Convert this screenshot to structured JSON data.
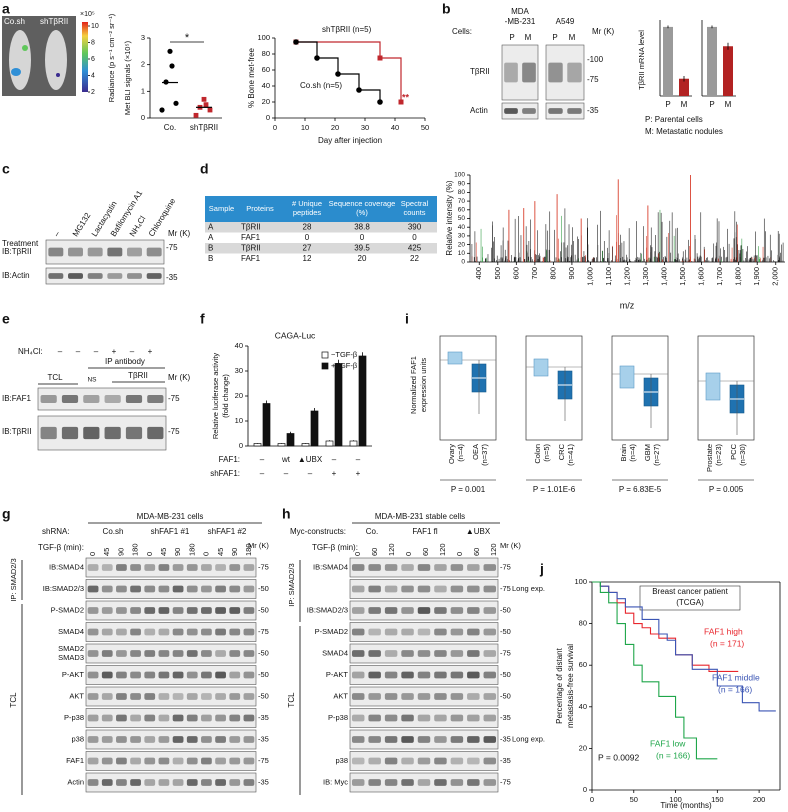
{
  "labels": [
    "a",
    "b",
    "c",
    "d",
    "e",
    "f",
    "g",
    "h",
    "i",
    "j"
  ],
  "a": {
    "mice": [
      "Co.sh",
      "shTβRII"
    ],
    "colorbar": {
      "label": "Radiance (p s⁻¹ cm⁻² sr⁻¹)",
      "scale": "×10⁵",
      "ticks": [
        10,
        8,
        6,
        4,
        2
      ]
    },
    "scatter": {
      "type": "scatter",
      "ylabel": "Met BLI signals (×10⁵)",
      "categories": [
        "Co.",
        "shTβRII"
      ],
      "colors": [
        "#000000",
        "#c0272d"
      ],
      "values": [
        [
          2.5,
          1.95,
          1.35,
          0.55,
          0.3
        ],
        [
          0.7,
          0.5,
          0.4,
          0.3,
          0.1
        ]
      ],
      "means": [
        1.33,
        0.4
      ],
      "ylim": [
        0,
        3
      ],
      "yticks": [
        0,
        1,
        2,
        3
      ],
      "significance": "*"
    },
    "survival": {
      "type": "line",
      "xlabel": "Day after injection",
      "ylabel": "% Bone met-free",
      "xlim": [
        0,
        50
      ],
      "xticks": [
        0,
        10,
        20,
        30,
        40,
        50
      ],
      "ylim": [
        0,
        100
      ],
      "yticks": [
        0,
        20,
        40,
        60,
        80,
        100
      ],
      "series": [
        {
          "name": "shTβRII (n=5)",
          "color": "#c0272d",
          "x": [
            7,
            35,
            42
          ],
          "values": [
            95,
            75,
            20
          ]
        },
        {
          "name": "Co.sh (n=5)",
          "color": "#000000",
          "x": [
            7,
            14,
            21,
            28,
            35
          ],
          "values": [
            95,
            75,
            55,
            35,
            20
          ]
        }
      ],
      "annotation": "**"
    }
  },
  "b": {
    "cells_label": "Cells:",
    "lines": [
      "MDA",
      "-MB-231",
      "A549"
    ],
    "lanes": [
      "P",
      "M",
      "P",
      "M"
    ],
    "mr": "Mr (K)",
    "blots": [
      "TβRII",
      "Actin"
    ],
    "markers": [
      "-100",
      "-75",
      "-35"
    ],
    "bars": {
      "type": "bar",
      "ylabel": "TβRII mRNA level",
      "categories": [
        "P",
        "M",
        "P",
        "M"
      ],
      "values": [
        1.0,
        0.25,
        1.0,
        0.72
      ],
      "errors": [
        0.02,
        0.04,
        0.02,
        0.05
      ],
      "colors": [
        "#9a9a9a",
        "#b22222",
        "#9a9a9a",
        "#b22222"
      ],
      "ylim": [
        0,
        1.1
      ]
    },
    "legend": [
      "P: Parental cells",
      "M: Metastatic nodules"
    ]
  },
  "c": {
    "treatment_label": "Treatment",
    "treatments": [
      "–",
      "MG132",
      "Lactacystin",
      "Bafilomycin A1",
      "NH₄Cl",
      "Chloroquine"
    ],
    "mr": "Mr (K)",
    "blots": [
      "IB:TβRII",
      "IB:Actin"
    ],
    "markers": [
      "-75",
      "-35"
    ]
  },
  "d": {
    "table": {
      "header": [
        "Sample",
        "Proteins",
        "# Unique peptides",
        "Sequence coverage (%)",
        "Spectral counts"
      ],
      "rows": [
        [
          "A",
          "TβRII",
          "28",
          "38.8",
          "390"
        ],
        [
          "A",
          "FAF1",
          "0",
          "0",
          "0"
        ],
        [
          "B",
          "TβRII",
          "27",
          "39.5",
          "425"
        ],
        [
          "B",
          "FAF1",
          "12",
          "20",
          "22"
        ]
      ]
    },
    "spectrum": {
      "ylabel": "Relative intensity (%)",
      "xlabel": "m/z",
      "xlim": [
        350,
        2050
      ],
      "ylim": [
        0,
        100
      ],
      "yticks": [
        0,
        10,
        20,
        30,
        40,
        50,
        60,
        70,
        80,
        90,
        100
      ],
      "xticks": [
        400,
        500,
        600,
        700,
        800,
        900,
        {
          "value": 1000,
          "label": "1,000"
        },
        {
          "value": 1100,
          "label": "1,100"
        },
        {
          "value": 1200,
          "label": "1,200"
        },
        {
          "value": 1300,
          "label": "1,300"
        },
        {
          "value": 1400,
          "label": "1,400"
        },
        {
          "value": 1500,
          "label": "1,500"
        },
        {
          "value": 1600,
          "label": "1,600"
        },
        {
          "value": 1700,
          "label": "1,700"
        },
        {
          "value": 1800,
          "label": "1,800"
        },
        {
          "value": 1900,
          "label": "1,900"
        },
        {
          "value": 2000,
          "label": "2,000"
        }
      ]
    }
  },
  "e": {
    "nh4cl_label": "NH₄Cl:",
    "nh4cl": [
      "–",
      "–",
      "–",
      "+",
      "–",
      "+"
    ],
    "ip_label": "IP antibody",
    "groups": [
      "TCL",
      "NS",
      "TβRII"
    ],
    "mr": "Mr (K)",
    "blots": [
      "IB:FAF1",
      "IB:TβRII"
    ],
    "markers": [
      "-75",
      "-75"
    ]
  },
  "f": {
    "type": "bar",
    "title": "CAGA-Luc",
    "ylabel": [
      "Relative luciferase activity",
      "(fold change)"
    ],
    "ylim": [
      0,
      40
    ],
    "yticks": [
      0,
      10,
      20,
      30,
      40
    ],
    "series": [
      {
        "name": "−TGF-β",
        "color": "#ffffff",
        "values": [
          1,
          1,
          1,
          2,
          2
        ],
        "errors": [
          0.2,
          0.2,
          0.2,
          0.3,
          0.3
        ]
      },
      {
        "name": "+TGF-β",
        "color": "#111111",
        "values": [
          17,
          5,
          14,
          33,
          36
        ],
        "errors": [
          1.2,
          0.7,
          1.2,
          1.5,
          1.5
        ]
      }
    ],
    "row_labels": [
      "FAF1:",
      "shFAF1:"
    ],
    "rows": [
      [
        "–",
        "wt",
        "▲UBX",
        "–",
        "–"
      ],
      [
        "–",
        "–",
        "–",
        "+",
        "+"
      ]
    ]
  },
  "g": {
    "cells": "MDA-MB-231 cells",
    "shrna_label": "shRNA:",
    "shrna": [
      "Co.sh",
      "shFAF1 #1",
      "shFAF1 #2"
    ],
    "tgf_label": "TGF-β (min):",
    "times": [
      "0",
      "45",
      "90",
      "180",
      "0",
      "45",
      "90",
      "180",
      "0",
      "45",
      "90",
      "180"
    ],
    "mr": "Mr (K)",
    "groups": [
      "IP: SMAD2/3",
      "TCL"
    ],
    "rows": [
      {
        "label": "IB:SMAD4",
        "marker": "-75"
      },
      {
        "label": "IB:SMAD2/3",
        "marker": "-50"
      },
      {
        "label": "P-SMAD2",
        "marker": "-50"
      },
      {
        "label": "SMAD4",
        "marker": "-75"
      },
      {
        "label": "SMAD2",
        "label2": "SMAD3",
        "marker": "-50"
      },
      {
        "label": "P-AKT",
        "marker": "-50"
      },
      {
        "label": "AKT",
        "marker": "-50"
      },
      {
        "label": "P-p38",
        "marker": "-35"
      },
      {
        "label": "p38",
        "marker": "-35"
      },
      {
        "label": "FAF1",
        "marker": "-75"
      },
      {
        "label": "Actin",
        "marker": "-35"
      }
    ]
  },
  "h": {
    "cells": "MDA-MB-231 stable cells",
    "construct_label": "Myc-constructs:",
    "constructs": [
      "Co.",
      "FAF1 fl",
      "▲UBX"
    ],
    "tgf_label": "TGF-β (min):",
    "times": [
      "0",
      "60",
      "120",
      "0",
      "60",
      "120",
      "0",
      "60",
      "120"
    ],
    "mr": "Mr (K)",
    "groups": [
      "IP: SMAD2/3",
      "TCL"
    ],
    "rows": [
      {
        "label": "IB:SMAD4",
        "marker": "-75"
      },
      {
        "label": "",
        "marker": "-75",
        "note": "Long exp."
      },
      {
        "label": "IB:SMAD2/3",
        "marker": "-50"
      },
      {
        "label": "P-SMAD2",
        "marker": "-50"
      },
      {
        "label": "SMAD4",
        "marker": "-75"
      },
      {
        "label": "P-AKT",
        "marker": "-50"
      },
      {
        "label": "AKT",
        "marker": "-50"
      },
      {
        "label": "P-p38",
        "marker": "-35"
      },
      {
        "label": "",
        "marker": "-35",
        "note": "Long exp."
      },
      {
        "label": "p38",
        "marker": "-35"
      },
      {
        "label": "IB: Myc",
        "marker": "-75"
      }
    ]
  },
  "i": {
    "ylabel": [
      "Normalized FAF1",
      "expression units"
    ],
    "panels": [
      {
        "categories": [
          [
            "Ovary",
            "(n=4)"
          ],
          [
            "OEA",
            "(n=37)"
          ]
        ],
        "p": "P = 0.001"
      },
      {
        "categories": [
          [
            "Colon",
            "(n=5)"
          ],
          [
            "CRC",
            "(n=41)"
          ]
        ],
        "p": "P = 1.01E-6"
      },
      {
        "categories": [
          [
            "Brain",
            "(n=4)"
          ],
          [
            "GBM",
            "(n=27)"
          ]
        ],
        "p": "P = 6.83E-5"
      },
      {
        "categories": [
          [
            "Prostate",
            "(n=23)"
          ],
          [
            "PCC",
            "(n=30)"
          ]
        ],
        "p": "P = 0.005"
      }
    ]
  },
  "j": {
    "type": "line",
    "title": [
      "Breast cancer patient",
      "(TCGA)"
    ],
    "ylabel": [
      "Percentage of distant",
      "metastasis-free survival"
    ],
    "xlabel": "Time (months)",
    "xlim": [
      0,
      225
    ],
    "xticks": [
      0,
      50,
      100,
      150,
      200
    ],
    "ylim": [
      0,
      100
    ],
    "yticks": [
      0,
      20,
      40,
      60,
      80,
      100
    ],
    "p": "P = 0.0092",
    "series": [
      {
        "name": "FAF1 high",
        "n": "(n = 171)",
        "color": "#e8262d",
        "x": [
          0,
          10,
          20,
          30,
          40,
          50,
          60,
          70,
          80,
          100,
          120,
          140,
          175
        ],
        "values": [
          100,
          98,
          95,
          90,
          85,
          80,
          78,
          75,
          73,
          65,
          60,
          57,
          57
        ]
      },
      {
        "name": "FAF1 middle",
        "n": "(n = 166)",
        "color": "#3b55b4",
        "x": [
          0,
          10,
          20,
          30,
          40,
          60,
          80,
          90,
          100,
          120,
          150,
          180,
          200,
          220
        ],
        "values": [
          100,
          98,
          95,
          92,
          88,
          82,
          75,
          72,
          65,
          58,
          50,
          42,
          38,
          38
        ]
      },
      {
        "name": "FAF1 low",
        "n": "(n = 166)",
        "color": "#1fa64a",
        "x": [
          0,
          10,
          20,
          30,
          40,
          50,
          60,
          80,
          100,
          110,
          125,
          150
        ],
        "values": [
          100,
          95,
          90,
          80,
          70,
          60,
          52,
          45,
          35,
          25,
          15,
          15
        ]
      }
    ]
  }
}
